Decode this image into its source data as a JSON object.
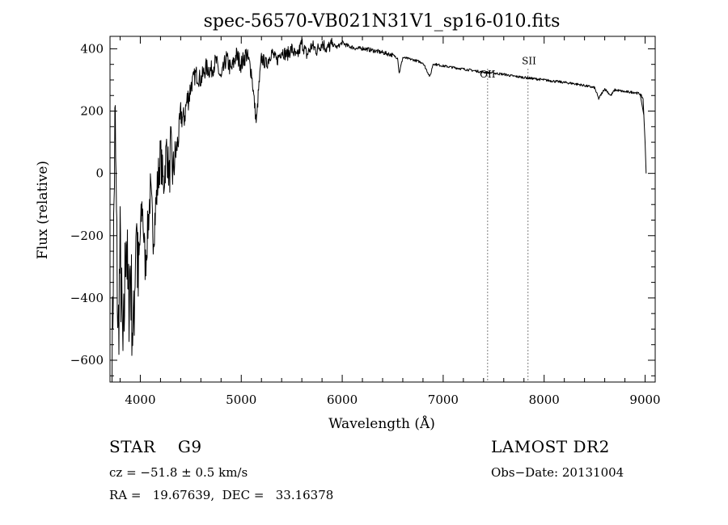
{
  "chart_data": {
    "type": "line",
    "title": "spec-56570-VB021N31V1_sp16-010.fits",
    "xlabel": "Wavelength (Å)",
    "ylabel": "Flux (relative)",
    "xlim": [
      3700,
      9100
    ],
    "ylim": [
      -670,
      440
    ],
    "xticks": [
      4000,
      5000,
      6000,
      7000,
      8000,
      9000
    ],
    "yticks": [
      -600,
      -400,
      -200,
      0,
      200,
      400
    ],
    "grid": false,
    "legend": "none",
    "line_color": "#000000",
    "series": [
      {
        "x": [
          3720,
          3750,
          3780,
          3800,
          3830,
          3860,
          3880,
          3900,
          3930,
          3960,
          3980,
          4000,
          4020,
          4050,
          4080,
          4100,
          4130,
          4150,
          4170,
          4200,
          4230,
          4260,
          4290,
          4300,
          4320,
          4350,
          4380,
          4400,
          4430,
          4460,
          4490,
          4500,
          4550,
          4600,
          4650,
          4700,
          4750,
          4800,
          4850,
          4900,
          4950,
          5000,
          5050,
          5100,
          5150,
          5170,
          5200,
          5250,
          5300,
          5350,
          5400,
          5450,
          5500,
          5550,
          5600,
          5650,
          5700,
          5750,
          5800,
          5850,
          5900,
          5950,
          6000,
          6050,
          6100,
          6150,
          6200,
          6300,
          6400,
          6500,
          6550,
          6563,
          6600,
          6700,
          6800,
          6870,
          6900,
          7000,
          7100,
          7200,
          7300,
          7400,
          7500,
          7600,
          7700,
          7800,
          7900,
          8000,
          8100,
          8200,
          8300,
          8400,
          8500,
          8540,
          8600,
          8660,
          8700,
          8800,
          8900,
          8950,
          8980,
          9000,
          9010
        ],
        "values": [
          -650,
          180,
          -550,
          -250,
          -620,
          -150,
          -450,
          -300,
          -550,
          -120,
          -380,
          -200,
          -100,
          -300,
          -150,
          -60,
          -200,
          -120,
          -40,
          60,
          -40,
          80,
          -20,
          100,
          0,
          60,
          120,
          190,
          170,
          230,
          260,
          280,
          320,
          300,
          340,
          330,
          360,
          300,
          370,
          330,
          380,
          350,
          385,
          330,
          160,
          260,
          370,
          350,
          390,
          360,
          395,
          380,
          400,
          370,
          420,
          380,
          410,
          395,
          420,
          400,
          415,
          405,
          420,
          410,
          405,
          400,
          402,
          395,
          388,
          380,
          370,
          320,
          372,
          365,
          355,
          310,
          352,
          345,
          340,
          335,
          330,
          325,
          322,
          318,
          312,
          308,
          304,
          300,
          296,
          292,
          288,
          282,
          275,
          240,
          272,
          250,
          268,
          262,
          260,
          255,
          240,
          100,
          0
        ]
      }
    ],
    "annotations": [
      {
        "text": "SII",
        "x": 7850,
        "y": 350
      },
      {
        "text": "OII",
        "x": 7440,
        "y": 308
      }
    ],
    "dotted_lines_x": [
      7440,
      7840
    ]
  },
  "footer": {
    "classification": "STAR    G9",
    "survey": "LAMOST DR2",
    "cz": "cz = −51.8 ± 0.5 km/s",
    "obs_date": "Obs−Date: 20131004",
    "radec": "RA =   19.67639,  DEC =   33.16378"
  }
}
